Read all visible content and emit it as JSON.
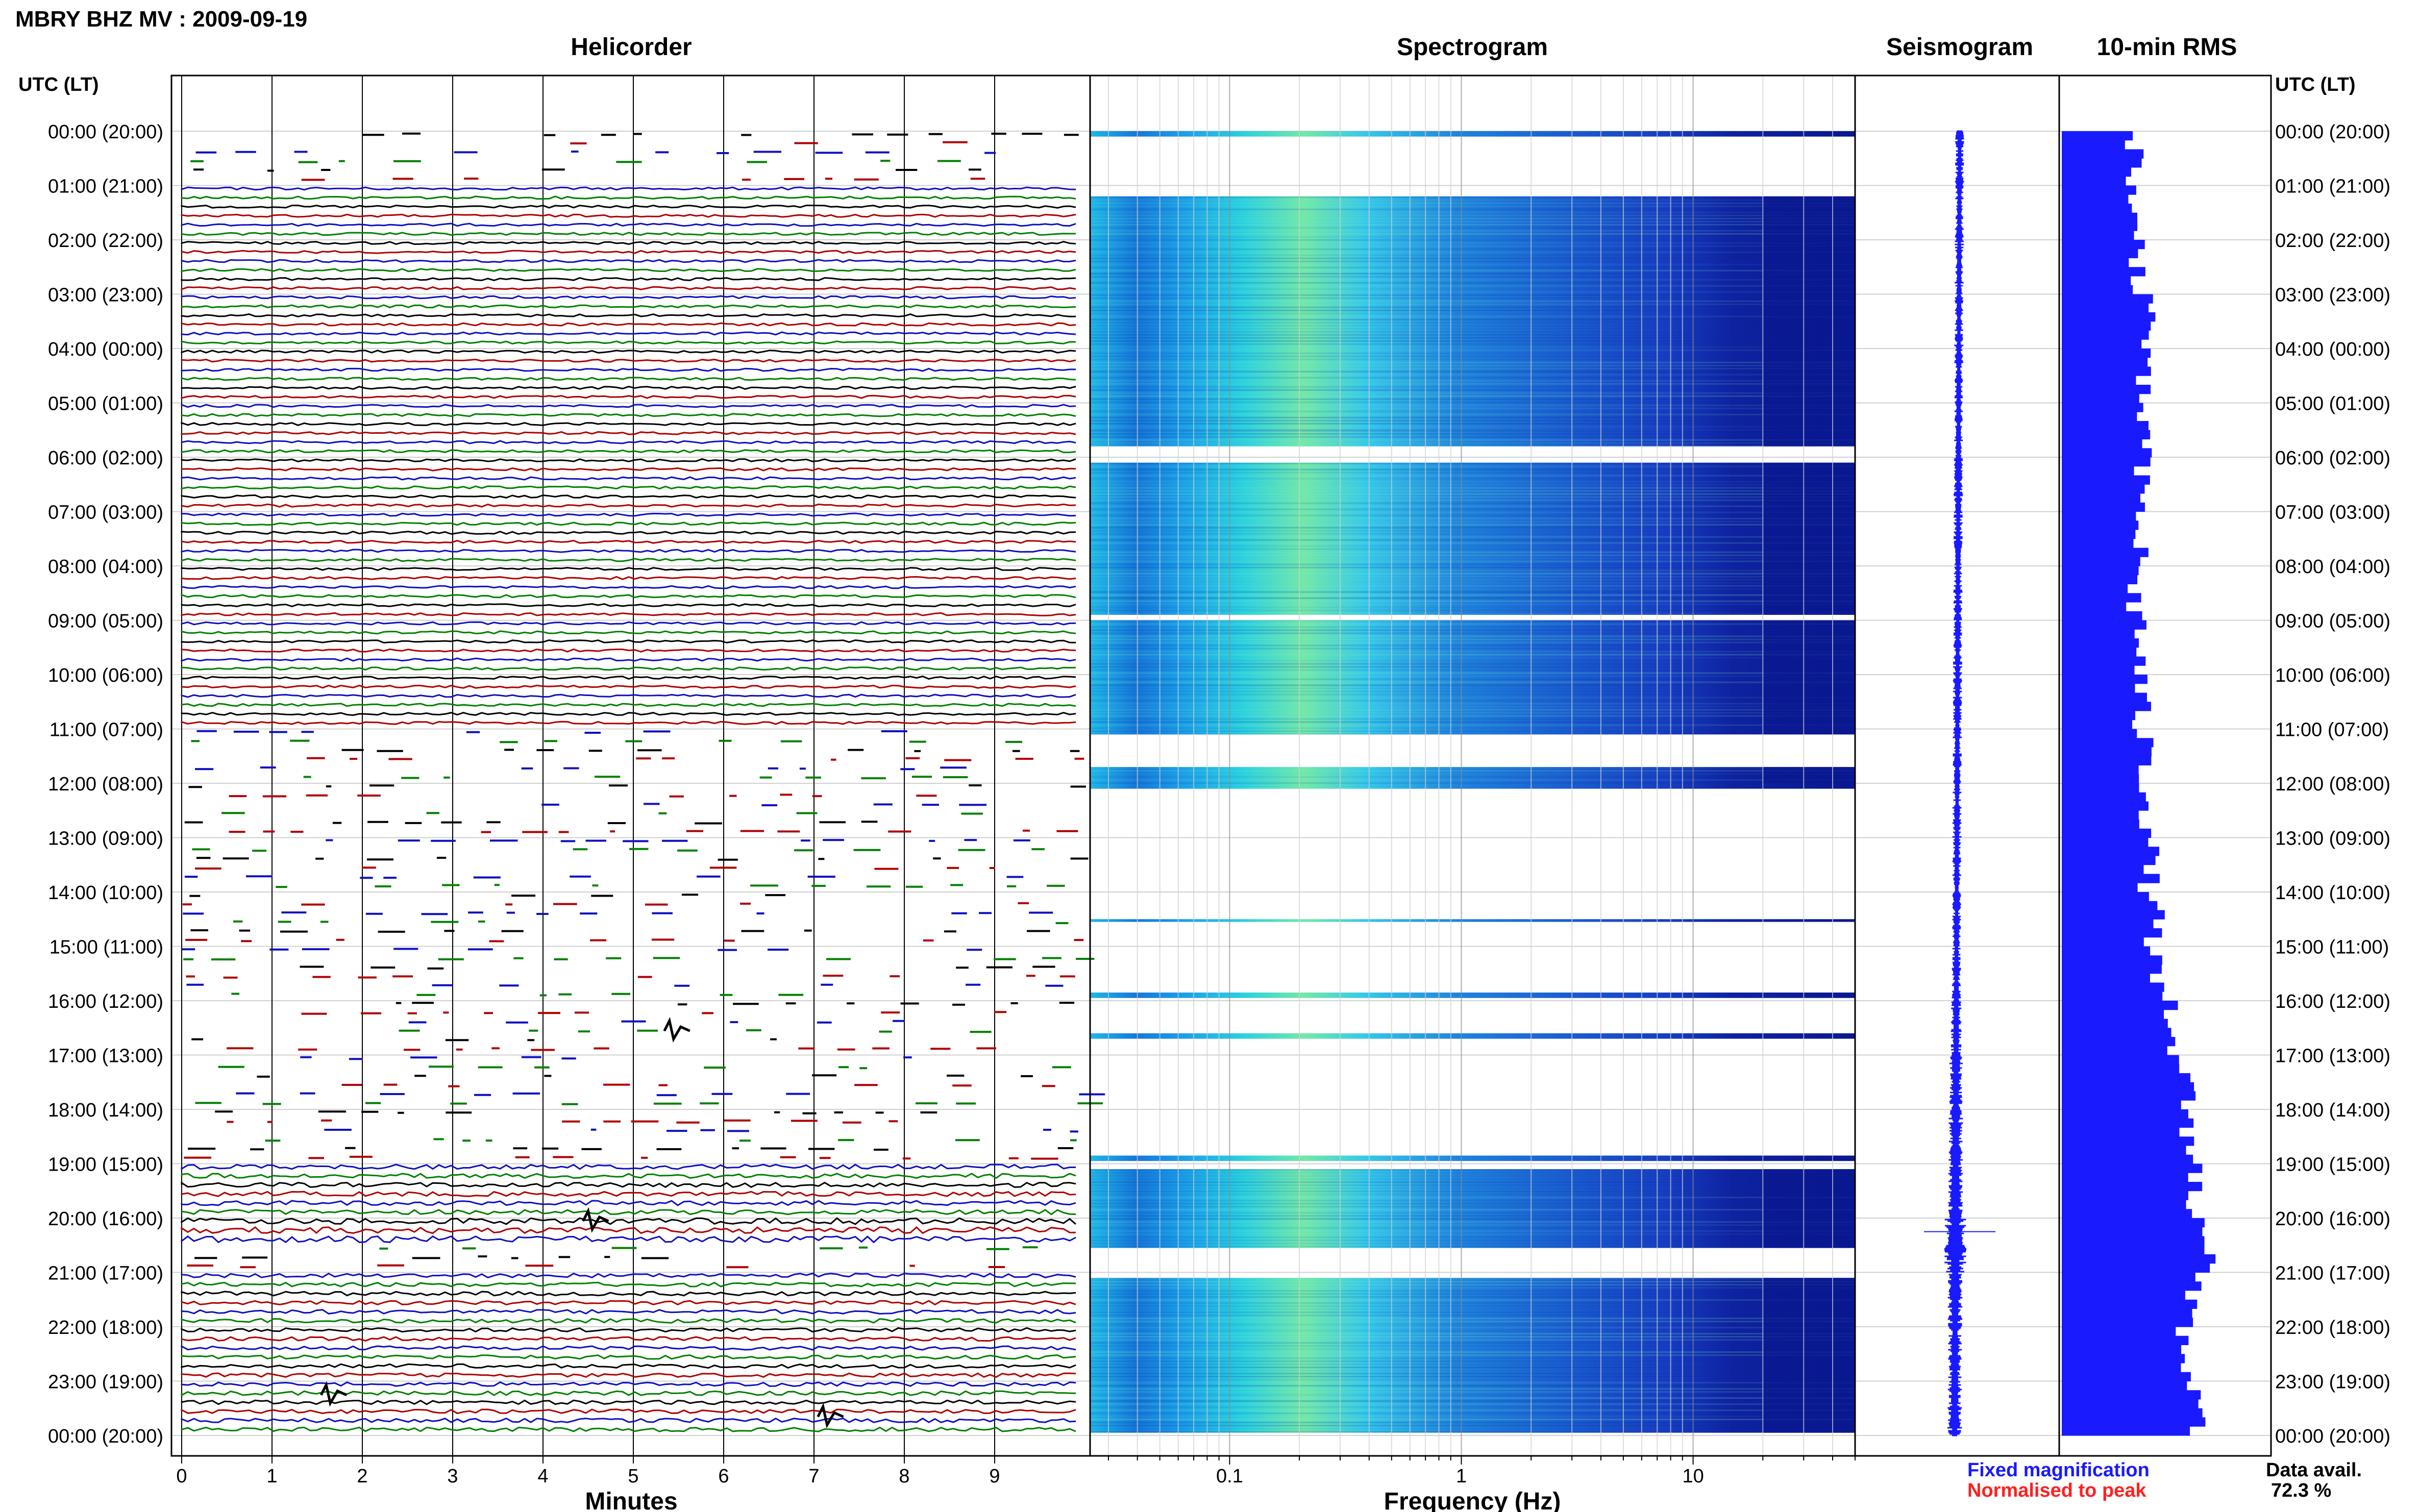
{
  "figure": {
    "station_title": "MBRY BHZ MV : 2009-09-19",
    "time_axis_label": "UTC (LT)",
    "time_labels": [
      "00:00 (20:00)",
      "01:00 (21:00)",
      "02:00 (22:00)",
      "03:00 (23:00)",
      "04:00 (00:00)",
      "05:00 (01:00)",
      "06:00 (02:00)",
      "07:00 (03:00)",
      "08:00 (04:00)",
      "09:00 (05:00)",
      "10:00 (06:00)",
      "11:00 (07:00)",
      "12:00 (08:00)",
      "13:00 (09:00)",
      "14:00 (10:00)",
      "15:00 (11:00)",
      "16:00 (12:00)",
      "17:00 (13:00)",
      "18:00 (14:00)",
      "19:00 (15:00)",
      "20:00 (16:00)",
      "21:00 (17:00)",
      "22:00 (18:00)",
      "23:00 (19:00)",
      "00:00 (20:00)"
    ],
    "legend": {
      "fixed": "Fixed magnification",
      "normalised": "Normalised to peak",
      "data_avail_label": "Data avail.",
      "data_avail_value": "72.3 %"
    },
    "colors": {
      "fixed": "#1a1aff",
      "normalised": "#ff2020",
      "trace_black": "#000000",
      "trace_red": "#b00000",
      "trace_blue": "#1010c0",
      "trace_green": "#008000",
      "spec_deep": "#0a1890",
      "rms_bar": "#1a1aff"
    }
  },
  "chart_data": [
    {
      "type": "line",
      "title": "Helicorder",
      "xlabel": "Minutes",
      "ylabel": "UTC (LT)",
      "xticks": [
        "0",
        "1",
        "2",
        "3",
        "4",
        "5",
        "6",
        "7",
        "8",
        "9"
      ],
      "xlim": [
        0,
        10
      ],
      "rows_per_hour": 6,
      "row_colors_cycle": [
        "black",
        "red",
        "blue",
        "green"
      ],
      "partial_data_hours": [
        [
          0,
          1
        ],
        [
          11,
          12.5
        ],
        [
          12.5,
          19
        ],
        [
          20.5,
          21
        ]
      ],
      "notable_events": [
        {
          "hour": 16.5,
          "minute": 5.4,
          "label": ""
        },
        {
          "hour": 20.0,
          "minute": 4.5,
          "label": ""
        },
        {
          "hour": 23.6,
          "minute": 7.1,
          "label": ""
        },
        {
          "hour": 23.2,
          "minute": 1.6,
          "label": ""
        }
      ]
    },
    {
      "type": "heatmap",
      "title": "Spectrogram",
      "xlabel": "Frequency (Hz)",
      "xticks": [
        "0.1",
        "1",
        "10"
      ],
      "xscale": "log",
      "xlim": [
        0.025,
        50
      ],
      "colormap": "jet (blue = low, yellow = high)",
      "data_hours": [
        [
          0,
          0.1
        ],
        [
          1.2,
          5.5
        ],
        [
          5.5,
          5.8
        ],
        [
          6.1,
          8.9
        ],
        [
          9.0,
          11.1
        ],
        [
          11.7,
          12.0
        ],
        [
          12.0,
          12.1
        ],
        [
          14.5,
          14.55
        ],
        [
          15.85,
          15.95
        ],
        [
          16.6,
          16.7
        ],
        [
          18.85,
          18.95
        ],
        [
          19.1,
          20.55
        ],
        [
          21.1,
          23.95
        ]
      ],
      "peak_band_hz": [
        0.2,
        0.8
      ]
    },
    {
      "type": "line",
      "title": "Seismogram",
      "description_values": {
        "trace_center_offset": [
          0.0,
          0.2
        ],
        "max_amplitude_hour": 20.25
      },
      "amplitude_by_hour": [
        1,
        1,
        1,
        1,
        1,
        1,
        1,
        1,
        1,
        1,
        1,
        1,
        1,
        1,
        1,
        1,
        1.2,
        1.5,
        1.6,
        1.8,
        2.4,
        1.6,
        1.5,
        1.6
      ]
    },
    {
      "type": "bar",
      "title": "10-min RMS",
      "orientation": "horizontal",
      "categories_hours": [
        0,
        1,
        2,
        3,
        4,
        5,
        6,
        7,
        8,
        9,
        10,
        11,
        12,
        13,
        14,
        15,
        16,
        17,
        18,
        19,
        20,
        21,
        22,
        23
      ],
      "values": [
        1.6,
        1.5,
        1.7,
        1.9,
        1.7,
        1.8,
        1.7,
        1.7,
        1.6,
        1.7,
        1.7,
        1.8,
        1.9,
        1.9,
        2.0,
        2.0,
        2.3,
        2.7,
        2.8,
        2.9,
        3.2,
        2.8,
        2.7,
        2.9
      ],
      "xlim": [
        0,
        4.5
      ]
    }
  ]
}
